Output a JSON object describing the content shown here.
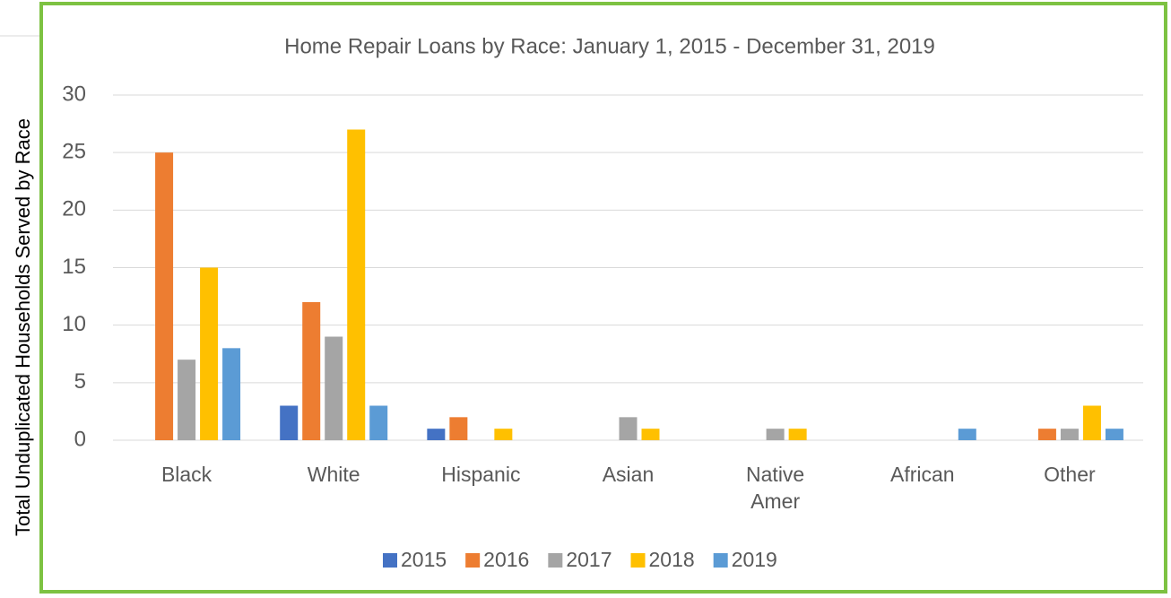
{
  "chart_data": {
    "type": "bar",
    "title": "Home Repair Loans by Race: January 1, 2015 - December 31, 2019",
    "y_label": "Total Unduplicated Households Served by Race",
    "categories": [
      "Black",
      "White",
      "Hispanic",
      "Asian",
      "Native Amer",
      "African",
      "Other"
    ],
    "series": [
      {
        "name": "2015",
        "color": "#4472c4",
        "values": [
          0,
          3,
          1,
          0,
          0,
          0,
          0
        ]
      },
      {
        "name": "2016",
        "color": "#ed7d31",
        "values": [
          25,
          12,
          2,
          0,
          0,
          0,
          1
        ]
      },
      {
        "name": "2017",
        "color": "#a5a5a5",
        "values": [
          7,
          9,
          0,
          2,
          1,
          0,
          1
        ]
      },
      {
        "name": "2018",
        "color": "#ffc000",
        "values": [
          15,
          27,
          1,
          1,
          1,
          0,
          3
        ]
      },
      {
        "name": "2019",
        "color": "#5b9bd5",
        "values": [
          8,
          3,
          0,
          0,
          0,
          1,
          1
        ]
      }
    ],
    "ylim": [
      0,
      30
    ],
    "yticks": [
      0,
      5,
      10,
      15,
      20,
      25,
      30
    ],
    "grid": true,
    "legend": "bottom"
  }
}
